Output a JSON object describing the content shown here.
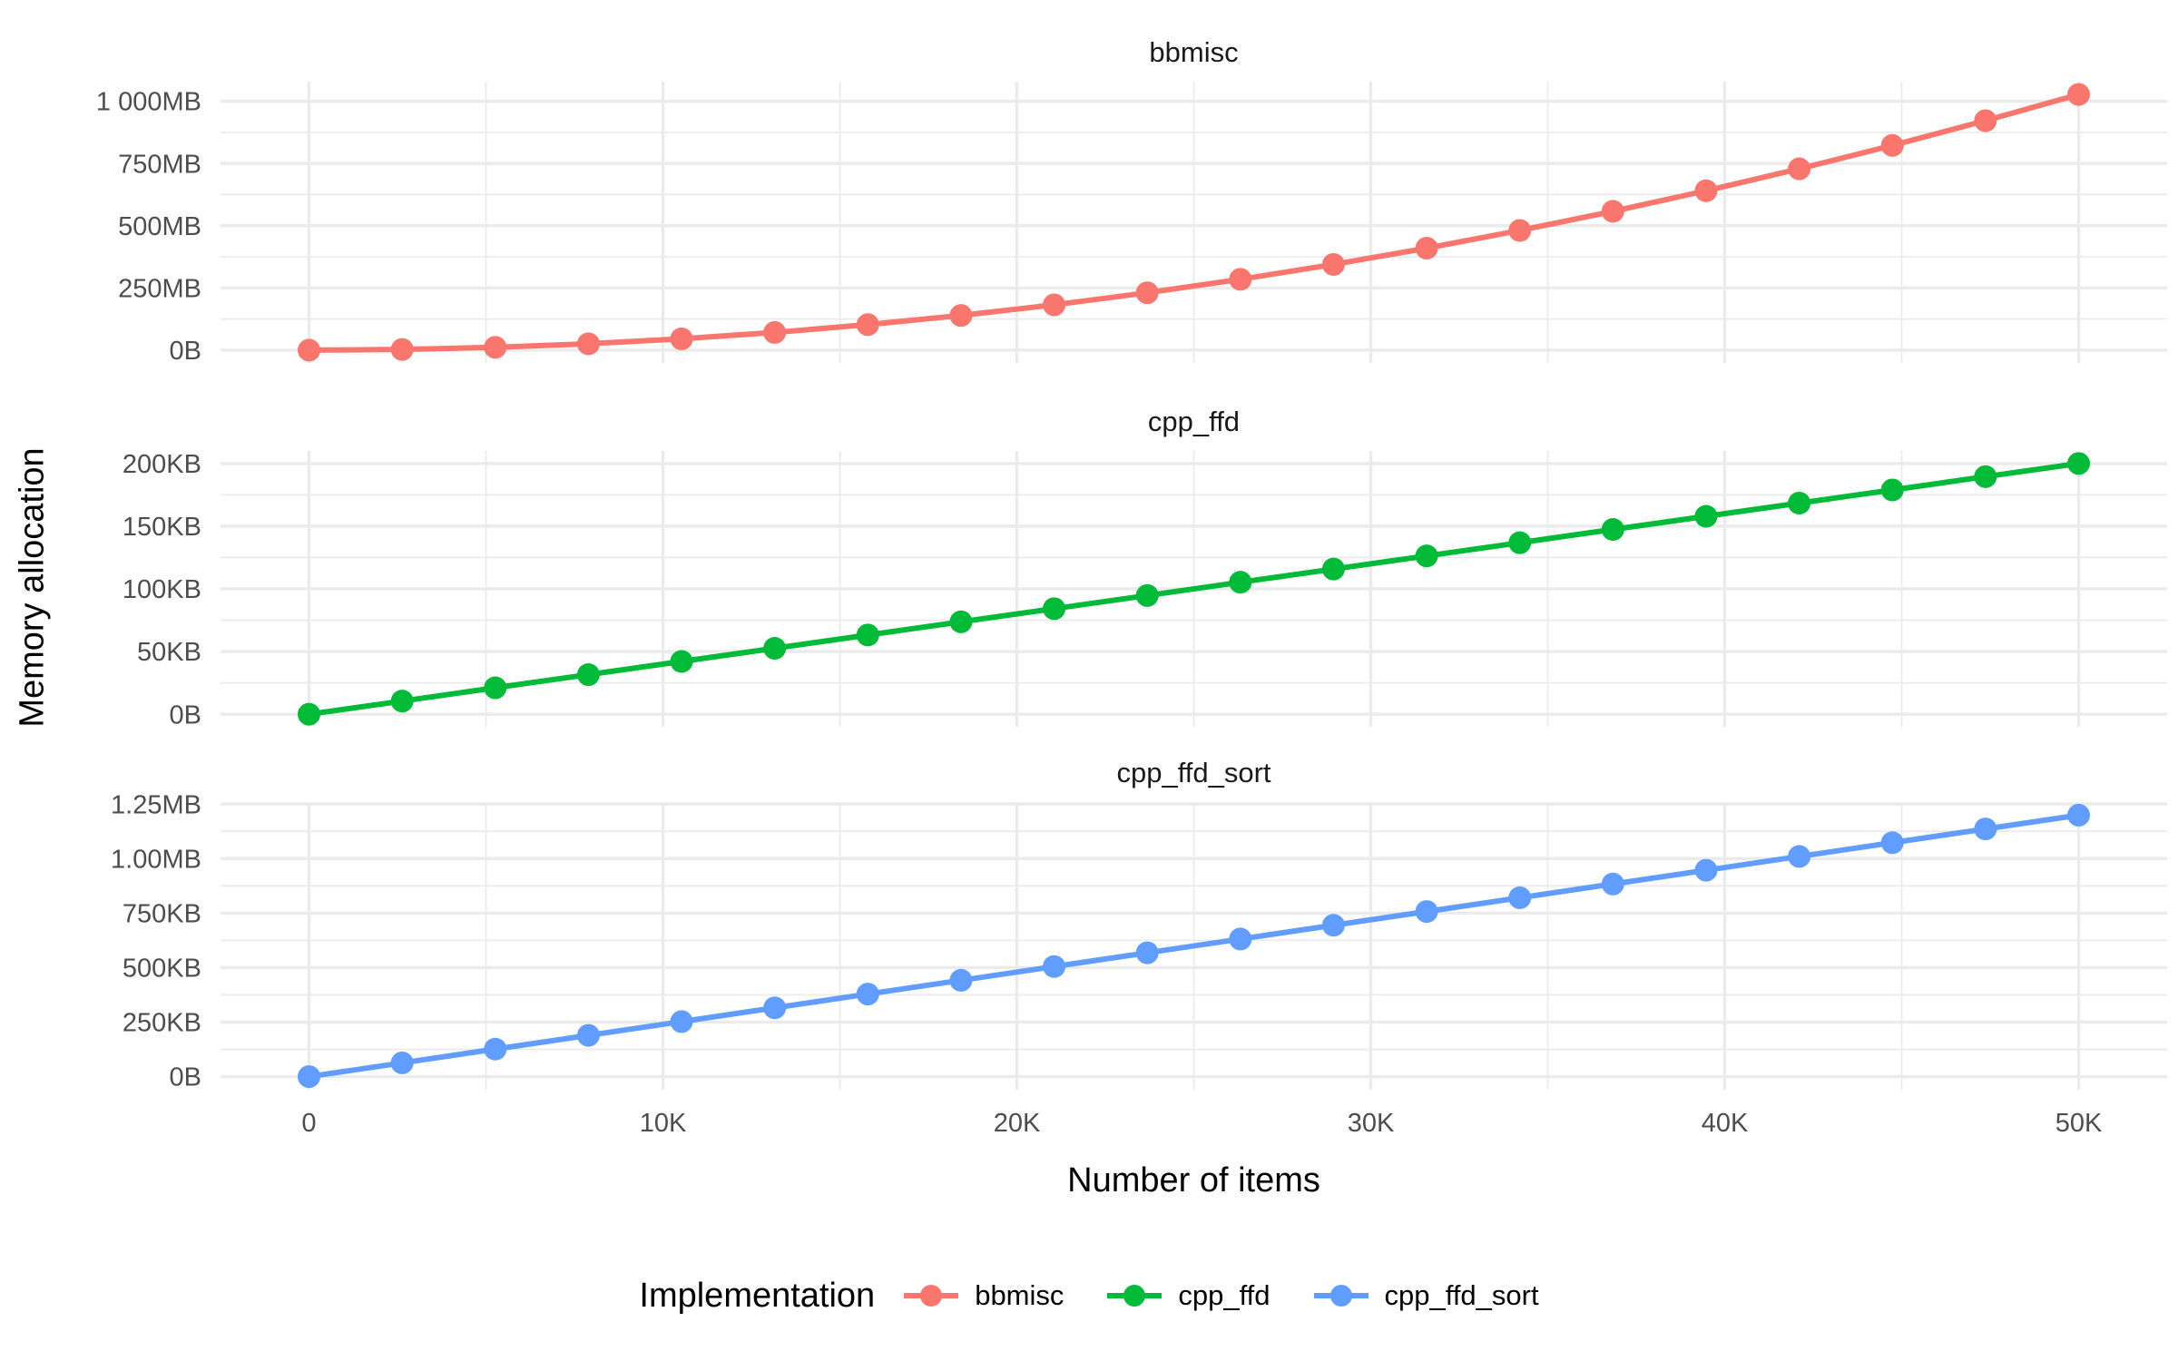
{
  "figure": {
    "x_axis_title": "Number of items",
    "y_axis_title": "Memory allocation",
    "legend_title": "Implementation"
  },
  "colors": {
    "background": "#FFFFFF",
    "grid": "#EBEBEB",
    "tick_label": "#4D4D4D",
    "panel_title": "#1A1A1A",
    "axis_title": "#000000",
    "red": "#F8766D",
    "green": "#00BA38",
    "blue": "#619CFF"
  },
  "chart_data": {
    "type": "line",
    "title": "",
    "xlabel": "Number of items",
    "ylabel": "Memory allocation",
    "legend_title": "Implementation",
    "legend_position": "bottom",
    "grid": true,
    "faceted": true,
    "x": [
      0,
      2632,
      5263,
      7895,
      10526,
      13158,
      15789,
      18421,
      21053,
      23684,
      26316,
      28947,
      31579,
      34211,
      36842,
      39474,
      42105,
      44737,
      47368,
      50000
    ],
    "x_range": [
      0,
      50000
    ],
    "x_ticks": [
      {
        "value": 0,
        "label": "0"
      },
      {
        "value": 10000,
        "label": "10K"
      },
      {
        "value": 20000,
        "label": "20K"
      },
      {
        "value": 30000,
        "label": "30K"
      },
      {
        "value": 40000,
        "label": "40K"
      },
      {
        "value": 50000,
        "label": "50K"
      }
    ],
    "series": [
      {
        "name": "bbmisc",
        "color": "#F8766D",
        "unit": "MB",
        "values": [
          0,
          2.8,
          11.4,
          25.6,
          45.5,
          71.1,
          102.5,
          139.4,
          182.1,
          230.5,
          284.6,
          344.3,
          409.8,
          480.9,
          557.8,
          640.3,
          728.5,
          822.4,
          922.0,
          1027.3
        ],
        "y_ticks": [
          {
            "value": 0,
            "label": "0B"
          },
          {
            "value": 250,
            "label": "250MB"
          },
          {
            "value": 500,
            "label": "500MB"
          },
          {
            "value": 750,
            "label": "750MB"
          },
          {
            "value": 1000,
            "label": "1 000MB"
          }
        ]
      },
      {
        "name": "cpp_ffd",
        "color": "#00BA38",
        "unit": "KB",
        "values": [
          0,
          10.5,
          21.1,
          31.6,
          42.1,
          52.6,
          63.2,
          73.7,
          84.2,
          94.7,
          105.3,
          115.8,
          126.3,
          136.8,
          147.4,
          157.9,
          168.4,
          178.9,
          189.5,
          200
        ],
        "y_ticks": [
          {
            "value": 0,
            "label": "0B"
          },
          {
            "value": 50,
            "label": "50KB"
          },
          {
            "value": 100,
            "label": "100KB"
          },
          {
            "value": 150,
            "label": "150KB"
          },
          {
            "value": 200,
            "label": "200KB"
          }
        ]
      },
      {
        "name": "cpp_ffd_sort",
        "color": "#619CFF",
        "unit": "KB",
        "values": [
          0,
          63.1,
          126.2,
          189.3,
          252.4,
          315.5,
          378.6,
          441.7,
          504.8,
          567.9,
          631,
          694.1,
          757.2,
          820.3,
          883.4,
          946.5,
          1009.6,
          1072.7,
          1135.8,
          1199
        ],
        "y_ticks": [
          {
            "value": 0,
            "label": "0B"
          },
          {
            "value": 250,
            "label": "250KB"
          },
          {
            "value": 500,
            "label": "500KB"
          },
          {
            "value": 750,
            "label": "750KB"
          },
          {
            "value": 1000,
            "label": "1.00MB"
          },
          {
            "value": 1250,
            "label": "1.25MB"
          }
        ]
      }
    ]
  }
}
